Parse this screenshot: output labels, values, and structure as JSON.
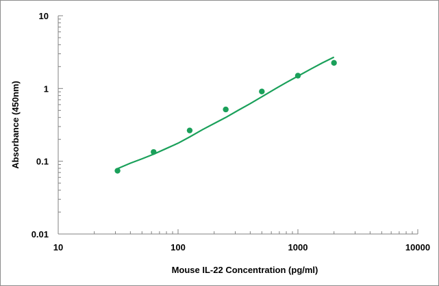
{
  "chart_data": {
    "type": "scatter",
    "title": "",
    "xlabel": "Mouse IL-22 Concentration (pg/ml)",
    "ylabel": "Absorbance (450nm)",
    "xscale": "log",
    "yscale": "log",
    "xlim": [
      10,
      10000
    ],
    "ylim": [
      0.01,
      10
    ],
    "x_ticks": [
      {
        "value": 10,
        "label": "10"
      },
      {
        "value": 100,
        "label": "100"
      },
      {
        "value": 1000,
        "label": "1000"
      },
      {
        "value": 10000,
        "label": "10000"
      }
    ],
    "y_ticks": [
      {
        "value": 0.01,
        "label": "0.01"
      },
      {
        "value": 0.1,
        "label": "0.1"
      },
      {
        "value": 1,
        "label": "1"
      },
      {
        "value": 10,
        "label": "10"
      }
    ],
    "grid": false,
    "legend": "none",
    "color": "#1aa05a",
    "points": {
      "x": [
        31.25,
        62.5,
        125,
        250,
        500,
        1000,
        2000
      ],
      "y": [
        0.074,
        0.134,
        0.265,
        0.515,
        0.91,
        1.5,
        2.25
      ]
    },
    "fit_curve": {
      "x": [
        31.25,
        40,
        50,
        62.5,
        80,
        100,
        125,
        160,
        200,
        250,
        320,
        400,
        500,
        640,
        800,
        1000,
        1280,
        1600,
        2000
      ],
      "y": [
        0.079,
        0.094,
        0.108,
        0.125,
        0.15,
        0.177,
        0.216,
        0.272,
        0.33,
        0.4,
        0.505,
        0.62,
        0.77,
        0.98,
        1.21,
        1.48,
        1.85,
        2.25,
        2.7
      ]
    }
  }
}
